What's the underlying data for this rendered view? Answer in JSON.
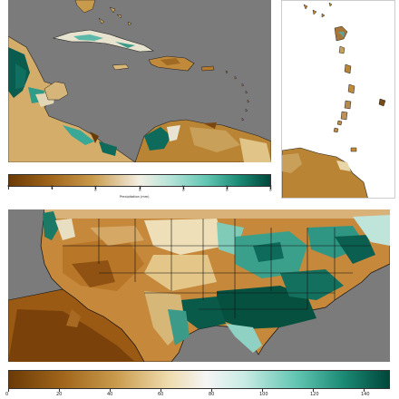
{
  "caribbean_colorbar": {
    "label": "Precipitation (mm)",
    "ticks": [
      "0",
      "50",
      "100",
      "150",
      "200",
      "250",
      "300"
    ],
    "min": 0,
    "max": 300
  },
  "conus_colorbar": {
    "ticks": [
      "0",
      "20",
      "40",
      "60",
      "80",
      "100",
      "120",
      "140"
    ],
    "min": 0,
    "max": 150
  },
  "colors": {
    "ocean": "#7b7b7b",
    "dry": "#6b3a05",
    "mid_dry": "#c99a4b",
    "neutral": "#f3efe3",
    "mid_wet": "#5fc4b1",
    "wet": "#00473b",
    "borders": "#000000"
  },
  "colormap": "brown-to-teal diverging (BrBG)"
}
